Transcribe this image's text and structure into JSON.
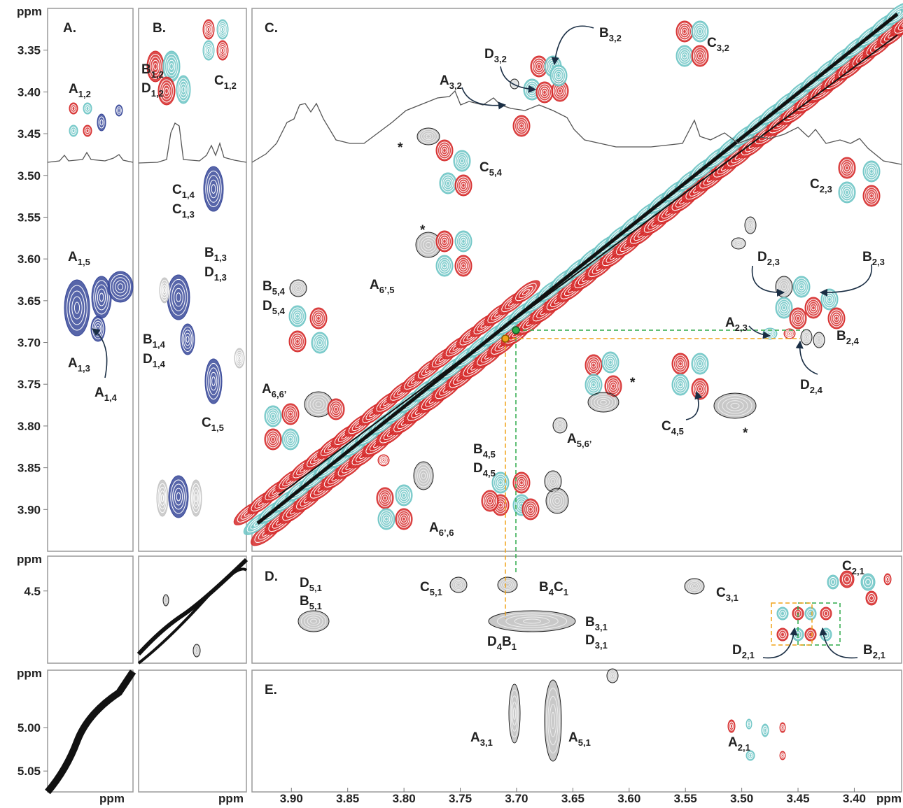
{
  "axis_unit": "ppm",
  "panels": [
    "A.",
    "B.",
    "C.",
    "D.",
    "E."
  ],
  "y_axis_top": {
    "ylim": [
      3.3,
      3.95
    ],
    "ticks": [
      3.35,
      {
        "value": 3.4,
        "label": "3.40"
      },
      3.45,
      {
        "value": 3.5,
        "label": "3.50"
      },
      3.55,
      {
        "value": 3.6,
        "label": "3.60"
      },
      3.65,
      {
        "value": 3.7,
        "label": "3.70"
      },
      3.75,
      {
        "value": 3.8,
        "label": "3.80"
      },
      3.85,
      {
        "value": 3.9,
        "label": "3.90"
      }
    ]
  },
  "y_axis_middle": {
    "ylim": [
      4.46,
      4.583
    ],
    "ticks": [
      4.5
    ]
  },
  "y_axis_bottom": {
    "ylim": [
      4.934,
      5.074
    ],
    "ticks": [
      {
        "value": 5,
        "label": "5.00"
      },
      5.05
    ]
  },
  "x_axis": {
    "xlim": [
      3.935,
      3.358
    ],
    "ticks": [
      {
        "value": 3.9,
        "label": "3.90"
      },
      3.85,
      {
        "value": 3.8,
        "label": "3.80"
      },
      3.75,
      {
        "value": 3.7,
        "label": "3.70"
      },
      3.65,
      {
        "value": 3.6,
        "label": "3.60"
      },
      3.55,
      {
        "value": 3.5,
        "label": "3.50"
      },
      3.45,
      {
        "value": 3.4,
        "label": "3.40"
      }
    ]
  },
  "annotations": [
    {
      "parts": [
        "A",
        "1,2"
      ]
    },
    {
      "parts": [
        "A",
        "1,5"
      ]
    },
    {
      "parts": [
        "A",
        "1,3"
      ]
    },
    {
      "parts": [
        "A",
        "1,4"
      ]
    },
    {
      "parts": [
        "B",
        "1,2"
      ]
    },
    {
      "parts": [
        "D",
        "1,2"
      ]
    },
    {
      "parts": [
        "C",
        "1,2"
      ]
    },
    {
      "parts": [
        "C",
        "1,4"
      ]
    },
    {
      "parts": [
        "C",
        "1,3"
      ]
    },
    {
      "parts": [
        "B",
        "1,3"
      ]
    },
    {
      "parts": [
        "D",
        "1,3"
      ]
    },
    {
      "parts": [
        "B",
        "1,4"
      ]
    },
    {
      "parts": [
        "D",
        "1,4"
      ]
    },
    {
      "parts": [
        "C",
        "1,5"
      ]
    },
    {
      "parts": [
        "B",
        "3,2"
      ]
    },
    {
      "parts": [
        "D",
        "3,2"
      ]
    },
    {
      "parts": [
        "A",
        "3,2"
      ]
    },
    {
      "parts": [
        "C",
        "3,2"
      ]
    },
    {
      "parts": [
        "*"
      ]
    },
    {
      "parts": [
        "C",
        "5,4"
      ]
    },
    {
      "parts": [
        "C",
        "2,3"
      ]
    },
    {
      "parts": [
        "*"
      ]
    },
    {
      "parts": [
        "B",
        "5,4"
      ]
    },
    {
      "parts": [
        "D",
        "5,4"
      ]
    },
    {
      "parts": [
        "A",
        "6’,5"
      ]
    },
    {
      "parts": [
        "D",
        "2,3"
      ]
    },
    {
      "parts": [
        "B",
        "2,3"
      ]
    },
    {
      "parts": [
        "A",
        "2,3"
      ]
    },
    {
      "parts": [
        "B",
        "2,4"
      ]
    },
    {
      "parts": [
        "D",
        "2,4"
      ]
    },
    {
      "parts": [
        "*"
      ]
    },
    {
      "parts": [
        "*"
      ]
    },
    {
      "parts": [
        "C",
        "4,5"
      ]
    },
    {
      "parts": [
        "A",
        "6,6’"
      ]
    },
    {
      "parts": [
        "A",
        "5,6’"
      ]
    },
    {
      "parts": [
        "B",
        "4,5"
      ]
    },
    {
      "parts": [
        "D",
        "4,5"
      ]
    },
    {
      "parts": [
        "A",
        "6’,6"
      ]
    },
    {
      "parts": [
        "D",
        "5,1"
      ]
    },
    {
      "parts": [
        "B",
        "5,1"
      ]
    },
    {
      "parts": [
        "C",
        "5,1"
      ]
    },
    {
      "parts": [
        "B",
        "4",
        "C",
        "1"
      ]
    },
    {
      "parts": [
        "D",
        "4",
        "B",
        "1"
      ]
    },
    {
      "parts": [
        "B",
        "3,1"
      ]
    },
    {
      "parts": [
        "D",
        "3,1"
      ]
    },
    {
      "parts": [
        "C",
        "3,1"
      ]
    },
    {
      "parts": [
        "C",
        "2,1"
      ]
    },
    {
      "parts": [
        "D",
        "2,1"
      ]
    },
    {
      "parts": [
        "B",
        "2,1"
      ]
    },
    {
      "parts": [
        "A",
        "3,1"
      ]
    },
    {
      "parts": [
        "A",
        "5,1"
      ]
    },
    {
      "parts": [
        "A",
        "2,1"
      ]
    }
  ]
}
